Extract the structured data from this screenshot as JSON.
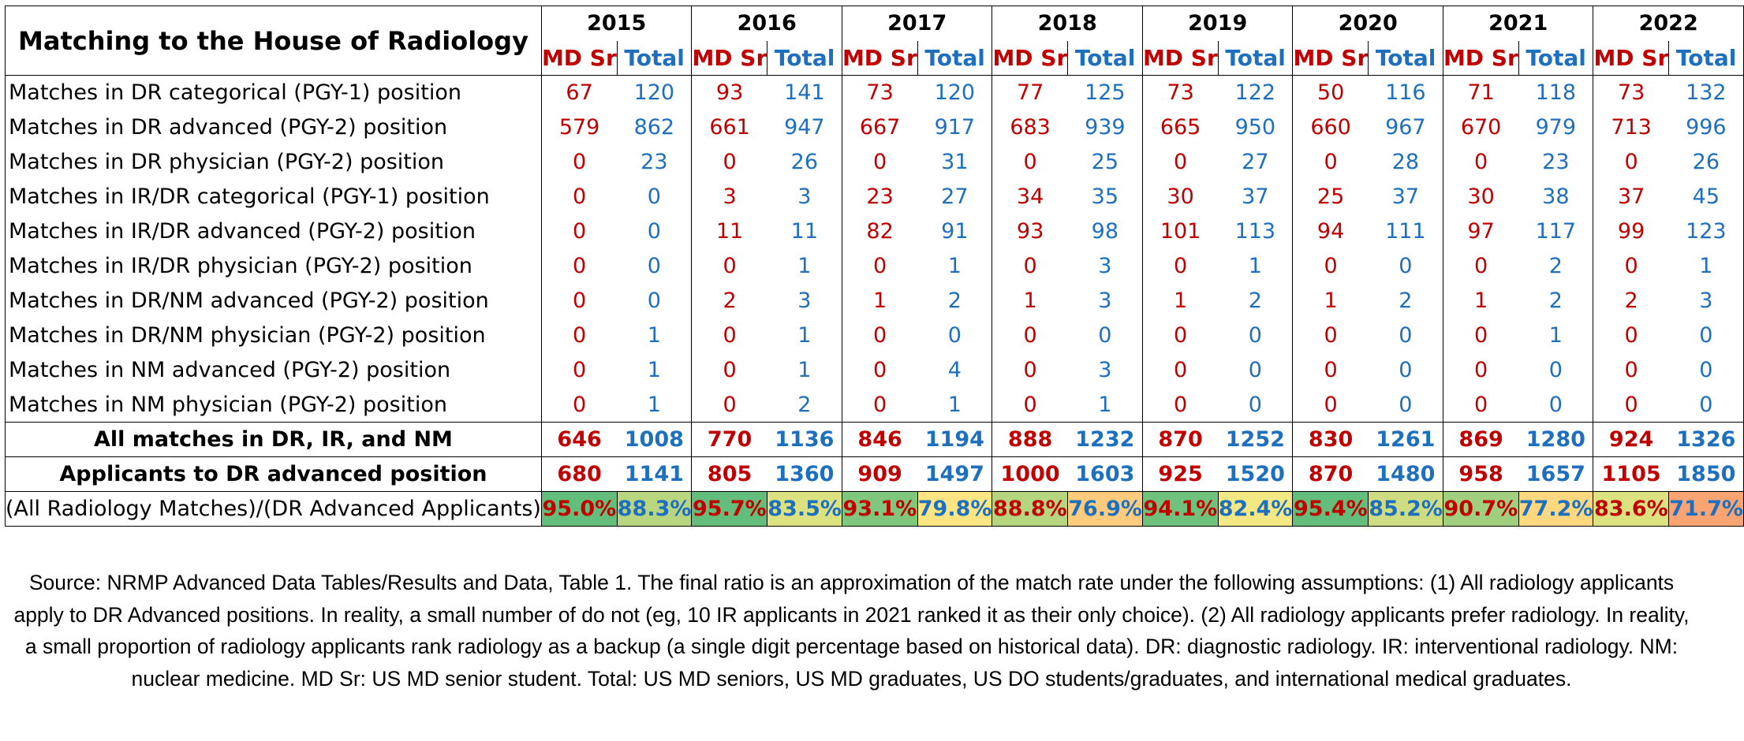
{
  "title": "Matching to the House of Radiology",
  "years": [
    "2015",
    "2016",
    "2017",
    "2018",
    "2019",
    "2020",
    "2021",
    "2022"
  ],
  "sub_headers": {
    "md": "MD Sr",
    "total": "Total"
  },
  "rows": [
    {
      "label": "Matches in DR categorical (PGY-1) position",
      "values": [
        "67",
        "120",
        "93",
        "141",
        "73",
        "120",
        "77",
        "125",
        "73",
        "122",
        "50",
        "116",
        "71",
        "118",
        "73",
        "132"
      ]
    },
    {
      "label": "Matches in DR advanced (PGY-2) position",
      "values": [
        "579",
        "862",
        "661",
        "947",
        "667",
        "917",
        "683",
        "939",
        "665",
        "950",
        "660",
        "967",
        "670",
        "979",
        "713",
        "996"
      ]
    },
    {
      "label": "Matches in DR physician (PGY-2) position",
      "values": [
        "0",
        "23",
        "0",
        "26",
        "0",
        "31",
        "0",
        "25",
        "0",
        "27",
        "0",
        "28",
        "0",
        "23",
        "0",
        "26"
      ]
    },
    {
      "label": "Matches in IR/DR categorical (PGY-1) position",
      "values": [
        "0",
        "0",
        "3",
        "3",
        "23",
        "27",
        "34",
        "35",
        "30",
        "37",
        "25",
        "37",
        "30",
        "38",
        "37",
        "45"
      ]
    },
    {
      "label": "Matches in IR/DR advanced (PGY-2) position",
      "values": [
        "0",
        "0",
        "11",
        "11",
        "82",
        "91",
        "93",
        "98",
        "101",
        "113",
        "94",
        "111",
        "97",
        "117",
        "99",
        "123"
      ]
    },
    {
      "label": "Matches in IR/DR physician (PGY-2) position",
      "values": [
        "0",
        "0",
        "0",
        "1",
        "0",
        "1",
        "0",
        "3",
        "0",
        "1",
        "0",
        "0",
        "0",
        "2",
        "0",
        "1"
      ]
    },
    {
      "label": "Matches in DR/NM advanced (PGY-2) position",
      "values": [
        "0",
        "0",
        "2",
        "3",
        "1",
        "2",
        "1",
        "3",
        "1",
        "2",
        "1",
        "2",
        "1",
        "2",
        "2",
        "3"
      ]
    },
    {
      "label": "Matches in DR/NM physician (PGY-2) position",
      "values": [
        "0",
        "1",
        "0",
        "1",
        "0",
        "0",
        "0",
        "0",
        "0",
        "0",
        "0",
        "0",
        "0",
        "1",
        "0",
        "0"
      ]
    },
    {
      "label": "Matches in NM advanced (PGY-2) position",
      "values": [
        "0",
        "1",
        "0",
        "1",
        "0",
        "4",
        "0",
        "3",
        "0",
        "0",
        "0",
        "0",
        "0",
        "0",
        "0",
        "0"
      ]
    },
    {
      "label": "Matches in NM physician (PGY-2) position",
      "values": [
        "0",
        "1",
        "0",
        "2",
        "0",
        "1",
        "0",
        "1",
        "0",
        "0",
        "0",
        "0",
        "0",
        "0",
        "0",
        "0"
      ]
    }
  ],
  "summary_rows": [
    {
      "label": "All matches in DR, IR, and NM",
      "values": [
        "646",
        "1008",
        "770",
        "1136",
        "846",
        "1194",
        "888",
        "1232",
        "870",
        "1252",
        "830",
        "1261",
        "869",
        "1280",
        "924",
        "1326"
      ]
    },
    {
      "label": "Applicants to DR advanced position",
      "values": [
        "680",
        "1141",
        "805",
        "1360",
        "909",
        "1497",
        "1000",
        "1603",
        "925",
        "1520",
        "870",
        "1480",
        "958",
        "1657",
        "1105",
        "1850"
      ]
    }
  ],
  "ratio_row": {
    "label": "(All Radiology Matches)/(DR Advanced Applicants)",
    "values": [
      "95.0%",
      "88.3%",
      "95.7%",
      "83.5%",
      "93.1%",
      "79.8%",
      "88.8%",
      "76.9%",
      "94.1%",
      "82.4%",
      "95.4%",
      "85.2%",
      "90.7%",
      "77.2%",
      "83.6%",
      "71.7%"
    ],
    "fill_colors": [
      "#63be7b",
      "#b7d67f",
      "#63be7b",
      "#dde281",
      "#7fc77d",
      "#fde583",
      "#b5d57f",
      "#fecc7c",
      "#6fc27c",
      "#f3e883",
      "#63be7b",
      "#cedd81",
      "#a0cf7e",
      "#fed87f",
      "#dde281",
      "#faa474"
    ]
  },
  "colors": {
    "md": "#c00000",
    "total": "#1f6fbf"
  },
  "source_note": "Source: NRMP Advanced Data Tables/Results and Data, Table 1. The final ratio is an approximation of the match rate under the following assumptions: (1) All radiology applicants apply to DR Advanced positions. In reality, a small number of do not (eg, 10 IR applicants in 2021 ranked it as their only choice). (2) All radiology applicants prefer radiology. In reality, a small proportion of radiology applicants rank radiology as a backup (a single digit percentage based on historical data). DR: diagnostic radiology. IR: interventional radiology. NM: nuclear medicine. MD Sr: US MD senior student. Total: US MD seniors, US MD graduates, US DO students/graduates, and international medical graduates."
}
